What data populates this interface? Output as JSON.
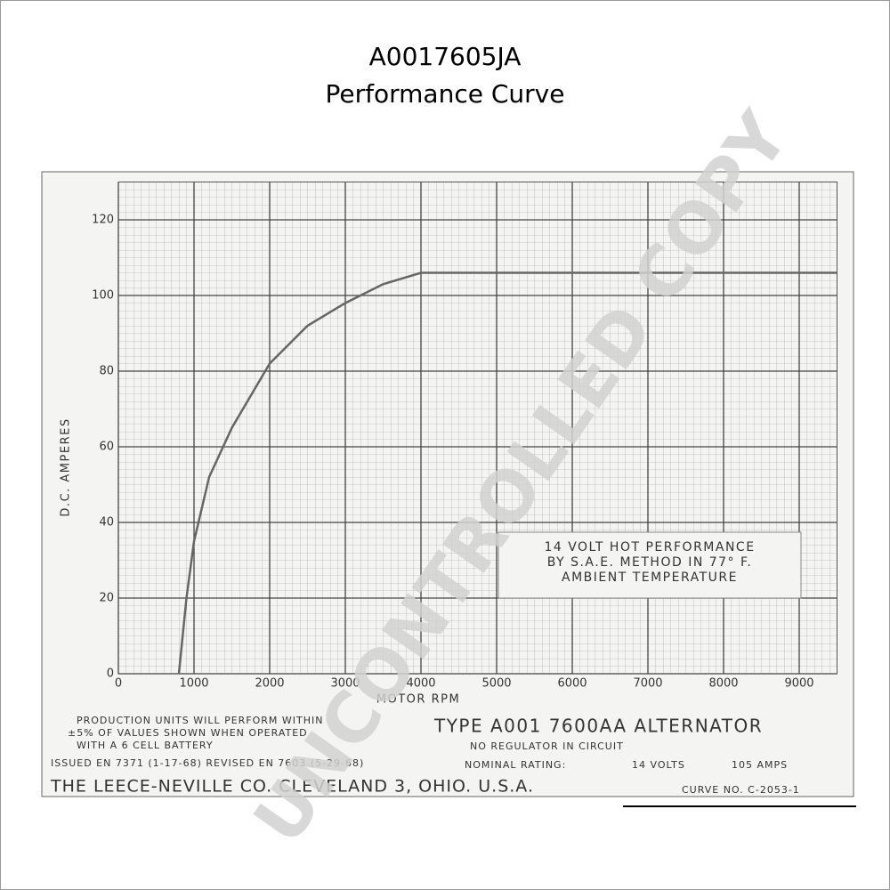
{
  "chart_data": {
    "type": "line",
    "title": "A0017605JA",
    "subtitle": "Performance Curve",
    "x_label": "MOTOR RPM",
    "y_label": "D.C. AMPERES",
    "x": [
      800,
      900,
      1000,
      1200,
      1500,
      2000,
      2500,
      3000,
      3500,
      4000,
      4500,
      5000,
      6000,
      7000,
      8000,
      9000,
      9500
    ],
    "values": [
      0,
      20,
      35,
      52,
      65,
      82,
      92,
      98,
      103,
      106,
      106,
      106,
      106,
      106,
      106,
      106,
      106
    ],
    "color": "#666666",
    "xlim": [
      0,
      9500
    ],
    "ylim": [
      0,
      130
    ],
    "xticks": [
      0,
      1000,
      2000,
      3000,
      4000,
      5000,
      6000,
      7000,
      8000,
      9000
    ],
    "yticks": [
      0,
      20,
      40,
      60,
      80,
      100,
      120
    ],
    "grid": true,
    "box_note": [
      "14 VOLT HOT PERFORMANCE",
      "BY S.A.E. METHOD IN 77° F.",
      "AMBIENT TEMPERATURE"
    ],
    "production_note": [
      "PRODUCTION UNITS WILL PERFORM WITHIN",
      "±5% OF VALUES SHOWN WHEN OPERATED",
      "WITH A 6 CELL BATTERY"
    ],
    "issued": "ISSUED EN 7371 (1-17-68) REVISED EN 7603 (5-29-68)",
    "company": "THE LEECE-NEVILLE CO. CLEVELAND 3, OHIO. U.S.A.",
    "model": "TYPE A001 7600AA ALTERNATOR",
    "regulator": "NO REGULATOR IN CIRCUIT",
    "rating_label": "NOMINAL RATING:",
    "rating_volts": "14 VOLTS",
    "rating_amps": "105 AMPS",
    "curve_no": "CURVE NO. C-2053-1",
    "watermark": "UNCONTROLLED COPY"
  }
}
